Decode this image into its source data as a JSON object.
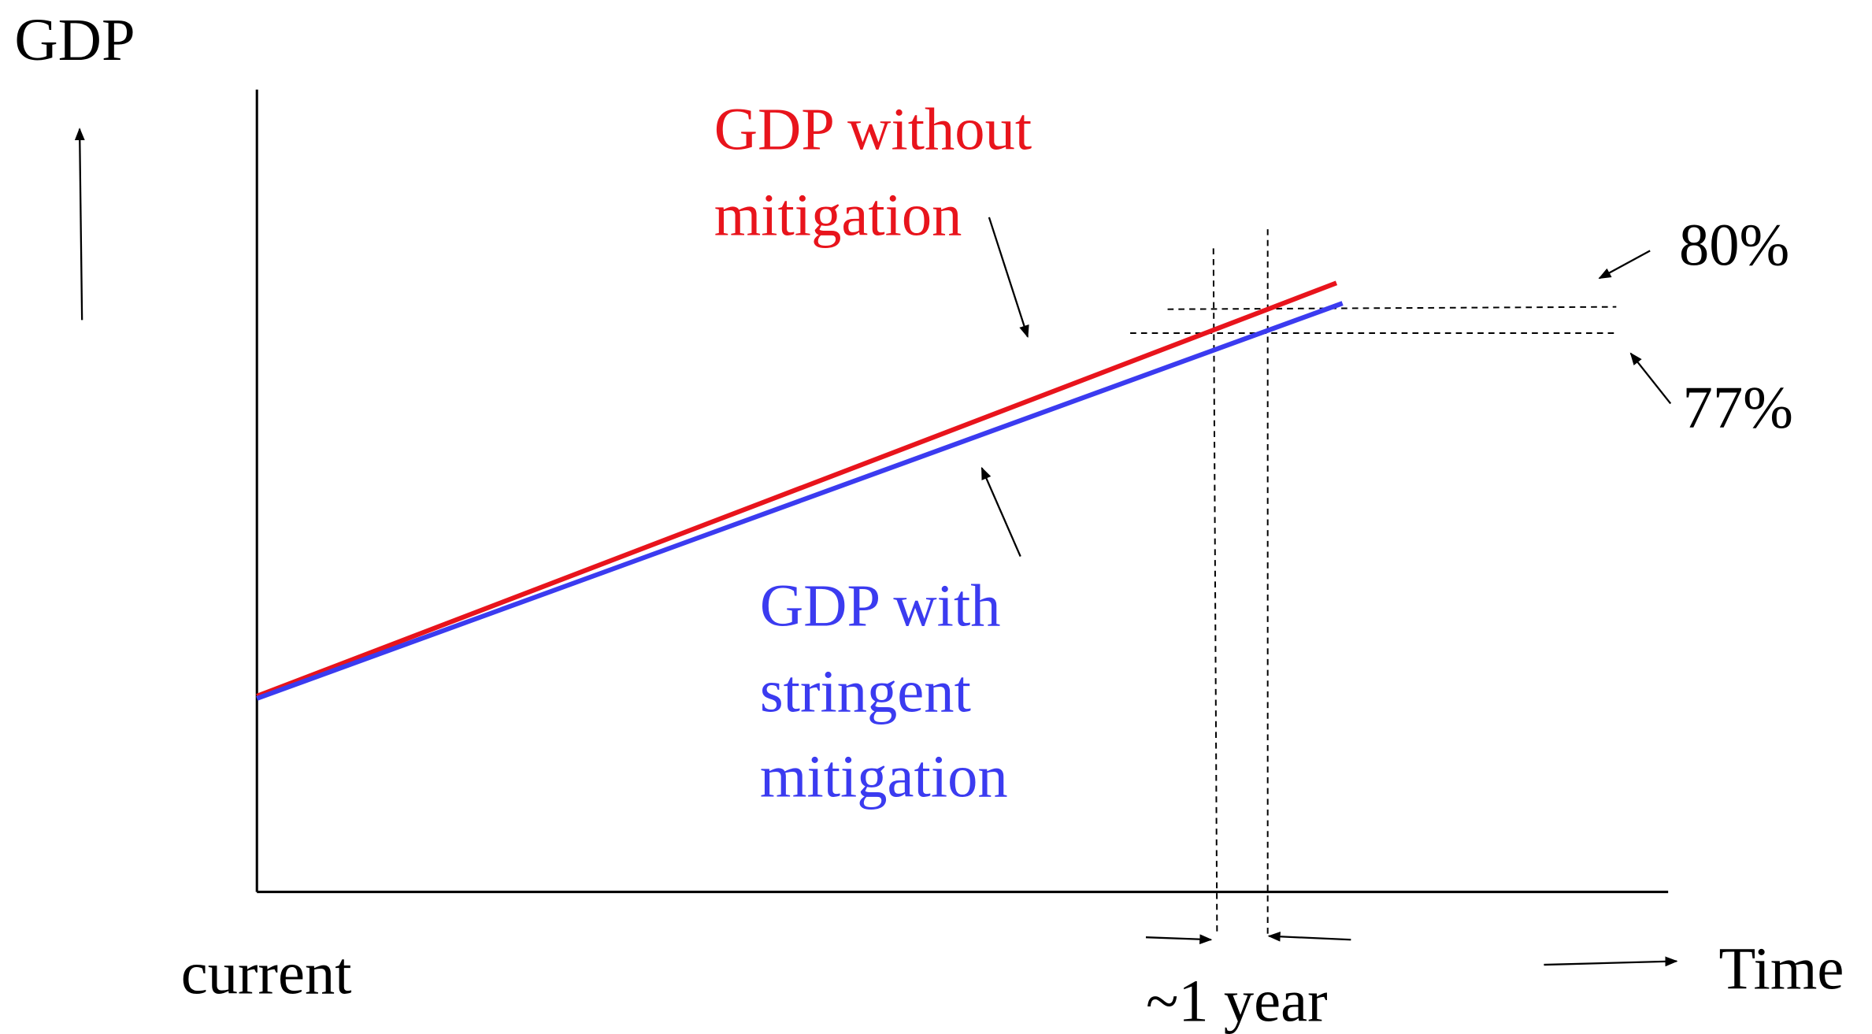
{
  "y_axis_label": "GDP",
  "x_axis_label": "Time",
  "x_start_label": "current",
  "gap_label": "~1 year",
  "upper_level_label": "80%",
  "lower_level_label": "77%",
  "line_without_mitigation": {
    "lines": [
      "GDP without",
      "mitigation"
    ]
  },
  "line_with_mitigation": {
    "lines": [
      "GDP with",
      "stringent",
      "mitigation"
    ]
  }
}
